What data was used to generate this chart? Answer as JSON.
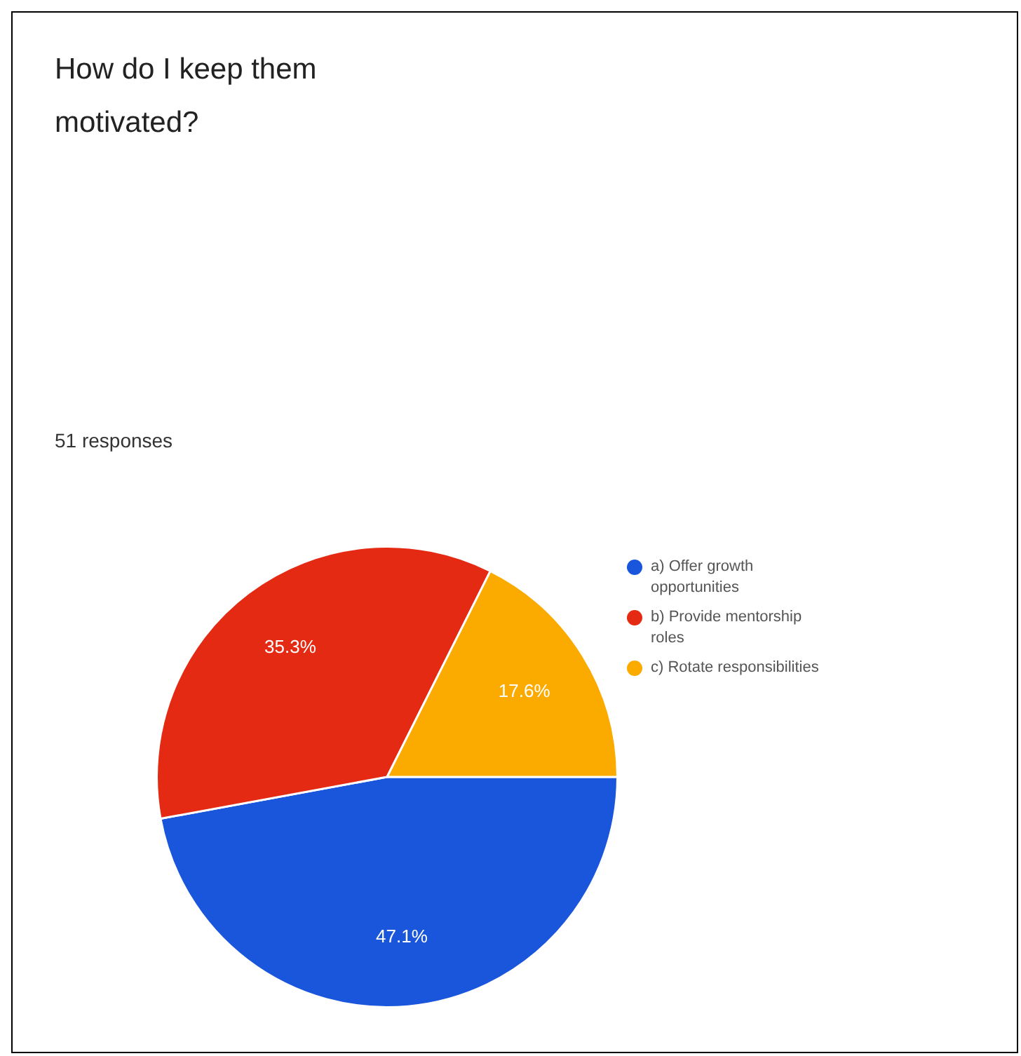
{
  "chart_data": {
    "type": "pie",
    "title": "How do I keep them motivated?",
    "subtitle": "51 responses",
    "categories": [
      "a) Offer growth opportunities",
      "b) Provide mentorship roles",
      "c) Rotate responsibilities"
    ],
    "values": [
      47.1,
      35.3,
      17.6
    ],
    "colors": [
      "#1a56db",
      "#e52a14",
      "#fbab00"
    ],
    "value_labels": [
      "47.1%",
      "35.3%",
      "17.6%"
    ],
    "legend": "right"
  }
}
